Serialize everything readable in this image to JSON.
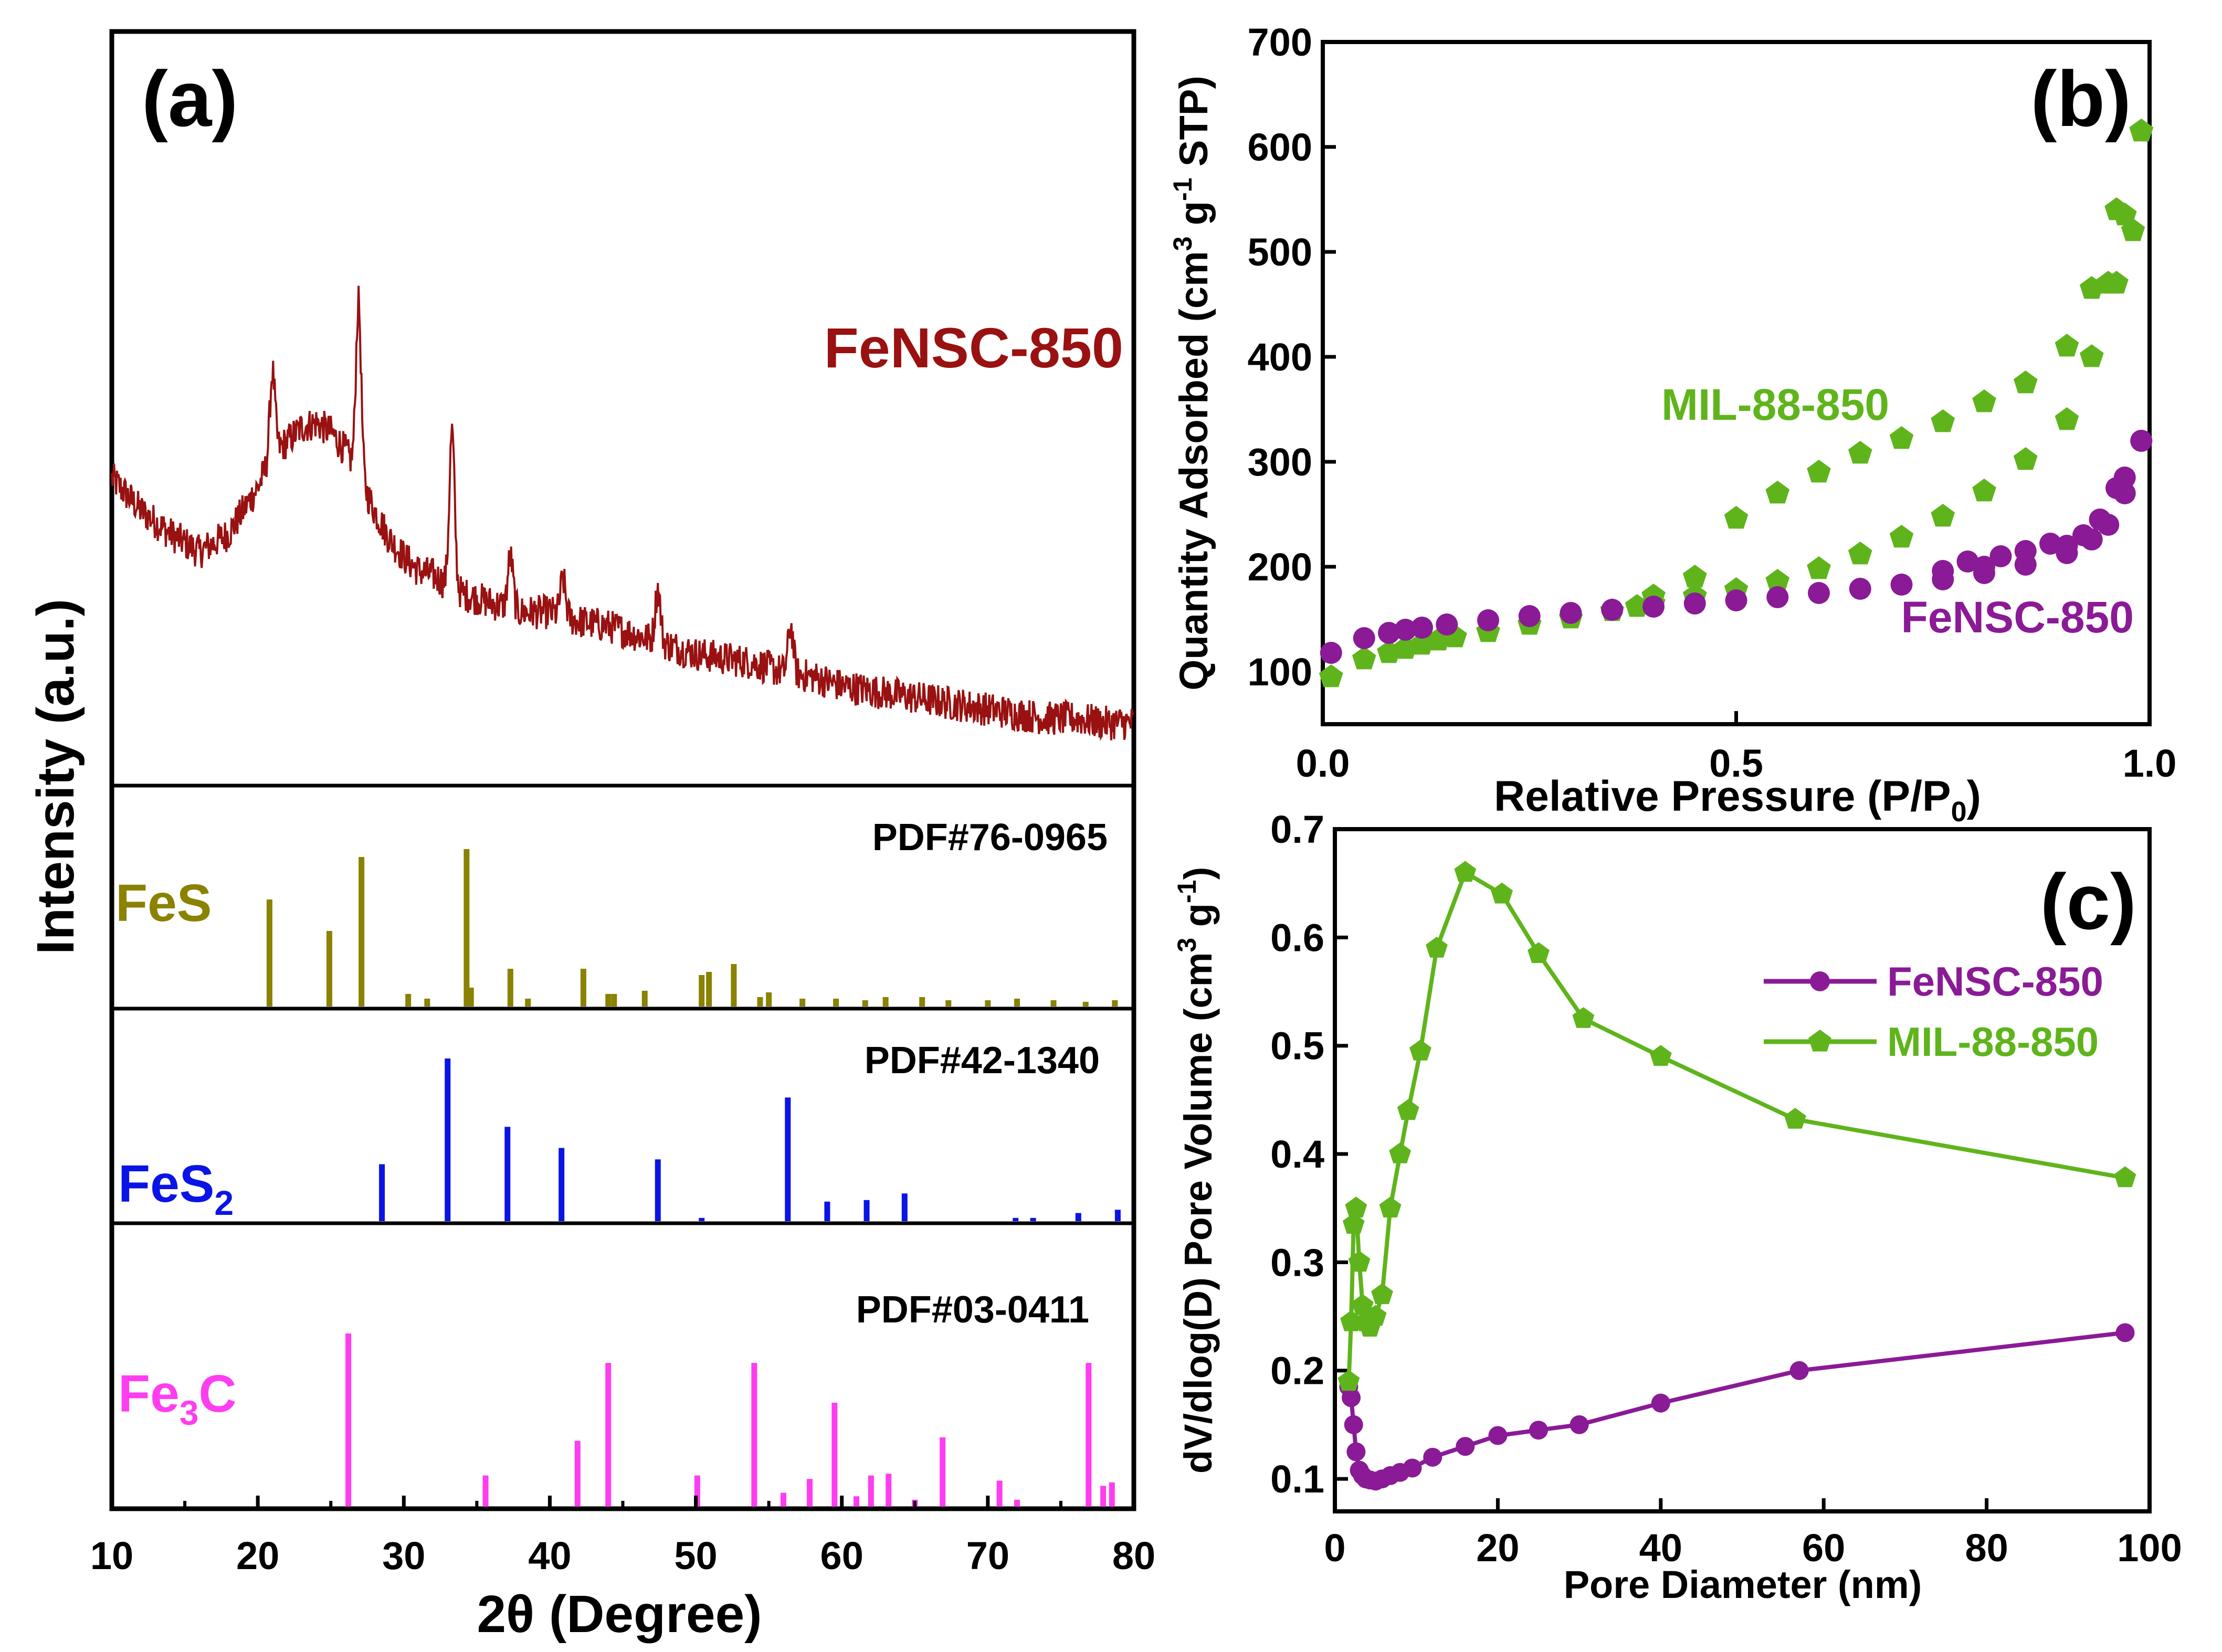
{
  "colors": {
    "fensc_xrd": "#991111",
    "fes": "#8a8200",
    "fes2": "#0a14e6",
    "fe3c": "#ff3df0",
    "fensc": "#8a1a96",
    "mil": "#5fb41c",
    "axis": "#000000"
  },
  "chart_data": [
    {
      "type": "line",
      "panel": "(a)",
      "xlabel": "2θ (Degree)",
      "ylabel": "Intensity (a.u.)",
      "xlim": [
        10,
        80
      ],
      "xticks": [
        "10",
        "20",
        "30",
        "40",
        "50",
        "60",
        "70",
        "80"
      ],
      "series": [
        {
          "name": "FeNSC-850",
          "x": [
            10,
            12,
            14,
            16,
            18,
            20,
            21,
            22,
            23,
            24,
            25,
            26,
            27,
            28,
            29,
            30,
            31,
            32,
            33,
            34,
            35,
            36,
            37,
            38,
            40,
            42,
            44,
            46,
            48,
            50,
            52,
            54,
            56,
            58,
            60,
            62,
            64,
            66,
            68,
            70,
            72,
            74,
            76,
            78,
            80
          ],
          "y": [
            0.62,
            0.55,
            0.5,
            0.46,
            0.5,
            0.6,
            0.67,
            0.7,
            0.73,
            0.74,
            0.72,
            0.68,
            0.62,
            0.55,
            0.49,
            0.45,
            0.42,
            0.41,
            0.39,
            0.37,
            0.36,
            0.35,
            0.34,
            0.33,
            0.33,
            0.31,
            0.3,
            0.28,
            0.26,
            0.24,
            0.23,
            0.22,
            0.2,
            0.19,
            0.17,
            0.16,
            0.15,
            0.14,
            0.13,
            0.12,
            0.11,
            0.1,
            0.1,
            0.09,
            0.09
          ],
          "peaks": [
            {
              "x": 21.0,
              "y": 0.85
            },
            {
              "x": 26.9,
              "y": 1.0
            },
            {
              "x": 33.3,
              "y": 0.72
            },
            {
              "x": 37.3,
              "y": 0.45
            },
            {
              "x": 40.9,
              "y": 0.4
            },
            {
              "x": 47.4,
              "y": 0.38
            },
            {
              "x": 56.5,
              "y": 0.3
            }
          ]
        }
      ],
      "labels": {
        "title": "(a)",
        "series_label": "FeNSC-850"
      }
    },
    {
      "type": "bar",
      "panel": "FeS reference",
      "label": "FeS",
      "card": "PDF#76-0965",
      "positions": [
        20.8,
        24.9,
        27.1,
        30.3,
        31.6,
        34.3,
        34.6,
        37.3,
        38.5,
        42.3,
        44.0,
        44.4,
        46.5,
        50.4,
        50.9,
        52.6,
        54.4,
        55.0,
        57.3,
        59.6,
        61.6,
        63.0,
        65.5,
        67.3,
        70.0,
        72.0,
        74.5,
        76.7,
        78.7
      ],
      "intensities": [
        0.68,
        0.48,
        0.95,
        0.08,
        0.05,
        1.0,
        0.12,
        0.24,
        0.05,
        0.24,
        0.08,
        0.08,
        0.1,
        0.2,
        0.22,
        0.27,
        0.06,
        0.09,
        0.05,
        0.05,
        0.04,
        0.06,
        0.06,
        0.04,
        0.04,
        0.05,
        0.04,
        0.03,
        0.04
      ]
    },
    {
      "type": "bar",
      "panel": "FeS2 reference",
      "label_main": "FeS",
      "label_sub": "2",
      "card": "PDF#42-1340",
      "positions": [
        28.5,
        33.0,
        37.1,
        40.8,
        47.4,
        50.4,
        56.3,
        59.0,
        61.7,
        64.3,
        71.9,
        73.1,
        76.2,
        78.9
      ],
      "intensities": [
        0.35,
        1.0,
        0.58,
        0.45,
        0.38,
        0.02,
        0.76,
        0.12,
        0.13,
        0.17,
        0.02,
        0.02,
        0.05,
        0.07
      ]
    },
    {
      "type": "bar",
      "panel": "Fe3C reference",
      "label_main": "Fe",
      "label_sub": "3",
      "label_end": "C",
      "card": "PDF#03-0411",
      "positions": [
        26.2,
        35.6,
        41.9,
        44.0,
        50.1,
        54.0,
        56.0,
        57.8,
        59.5,
        61.0,
        62.0,
        63.2,
        65.0,
        66.9,
        70.8,
        72.0,
        76.9,
        77.9,
        78.5
      ],
      "intensities": [
        1.0,
        0.18,
        0.38,
        0.83,
        0.18,
        0.83,
        0.08,
        0.16,
        0.6,
        0.06,
        0.18,
        0.19,
        0.04,
        0.4,
        0.15,
        0.04,
        0.83,
        0.12,
        0.14
      ]
    },
    {
      "type": "scatter",
      "panel": "(b)",
      "title": "(b)",
      "xlabel": "Relative Pressure (P/P",
      "xlabel_sub": "0",
      "xlabel_end": ")",
      "ylabel_main": "Quantity Adsorbed (cm",
      "ylabel_sup1": "3",
      "ylabel_mid": " g",
      "ylabel_sup2": "-1",
      "ylabel_end": " STP)",
      "xlim": [
        0,
        1
      ],
      "ylim": [
        50,
        700
      ],
      "xticks": [
        "0.0",
        "0.5",
        "1.0"
      ],
      "yticks": [
        "100",
        "200",
        "300",
        "400",
        "500",
        "600",
        "700"
      ],
      "series": [
        {
          "name": "MIL-88-850",
          "label": "MIL-88-850",
          "adsorption": {
            "x": [
              0.01,
              0.05,
              0.08,
              0.1,
              0.12,
              0.14,
              0.16,
              0.2,
              0.25,
              0.3,
              0.35,
              0.38,
              0.4,
              0.45,
              0.5,
              0.55,
              0.6,
              0.65,
              0.7,
              0.75,
              0.8,
              0.85,
              0.9,
              0.93,
              0.96,
              0.98,
              0.99
            ],
            "y": [
              95,
              112,
              118,
              122,
              126,
              130,
              133,
              138,
              145,
              151,
              158,
              162,
              165,
              172,
              178,
              186,
              198,
              212,
              228,
              248,
              272,
              302,
              340,
              400,
              470,
              520,
              615
            ]
          },
          "desorption": {
            "x": [
              0.99,
              0.97,
              0.96,
              0.95,
              0.93,
              0.9,
              0.85,
              0.8,
              0.75,
              0.7,
              0.65,
              0.6,
              0.55,
              0.5,
              0.45,
              0.4
            ],
            "y": [
              615,
              535,
              540,
              470,
              465,
              410,
              375,
              357,
              338,
              322,
              308,
              290,
              270,
              246,
              190,
              172
            ]
          }
        },
        {
          "name": "FeNSC-850",
          "label": "FeNSC-850",
          "adsorption": {
            "x": [
              0.01,
              0.05,
              0.08,
              0.1,
              0.12,
              0.15,
              0.2,
              0.25,
              0.3,
              0.35,
              0.4,
              0.45,
              0.5,
              0.55,
              0.6,
              0.65,
              0.7,
              0.75,
              0.8,
              0.85,
              0.9,
              0.93,
              0.95,
              0.97,
              0.99
            ],
            "y": [
              118,
              132,
              137,
              140,
              142,
              145,
              149,
              153,
              156,
              159,
              162,
              165,
              168,
              171,
              175,
              179,
              183,
              188,
              194,
              202,
              213,
              226,
              240,
              270,
              320
            ]
          },
          "desorption": {
            "x": [
              0.99,
              0.97,
              0.96,
              0.94,
              0.92,
              0.9,
              0.88,
              0.85,
              0.82,
              0.8,
              0.78,
              0.75
            ],
            "y": [
              320,
              285,
              275,
              245,
              230,
              220,
              222,
              215,
              210,
              200,
              205,
              196
            ]
          }
        }
      ]
    },
    {
      "type": "line",
      "panel": "(c)",
      "title": "(c)",
      "xlabel": "Pore Diameter (nm)",
      "ylabel_main": "dV/dlog(D) Pore Volume (cm",
      "ylabel_sup1": "3",
      "ylabel_mid": " g",
      "ylabel_sup2": "-1",
      "ylabel_end": ")",
      "xlim": [
        0,
        100
      ],
      "ylim": [
        0.07,
        0.7
      ],
      "xticks": [
        "0",
        "20",
        "40",
        "60",
        "80",
        "100"
      ],
      "yticks": [
        "0.1",
        "0.2",
        "0.3",
        "0.4",
        "0.5",
        "0.6",
        "0.7"
      ],
      "series": [
        {
          "name": "FeNSC-850",
          "x": [
            1.7,
            2.0,
            2.3,
            2.6,
            3.0,
            3.4,
            3.8,
            4.3,
            5.0,
            5.8,
            6.8,
            8.0,
            9.5,
            12,
            16,
            20,
            25,
            30,
            40,
            57,
            97
          ],
          "y": [
            0.185,
            0.175,
            0.15,
            0.125,
            0.108,
            0.103,
            0.1,
            0.099,
            0.098,
            0.1,
            0.103,
            0.106,
            0.11,
            0.12,
            0.13,
            0.14,
            0.145,
            0.15,
            0.17,
            0.2,
            0.235
          ]
        },
        {
          "name": "MIL-88-850",
          "x": [
            1.7,
            2.0,
            2.3,
            2.6,
            3.0,
            3.4,
            3.8,
            4.3,
            5.0,
            5.8,
            6.8,
            8.0,
            9.0,
            10.5,
            12.5,
            16,
            20.5,
            25,
            30.5,
            40,
            56.5,
            97
          ],
          "y": [
            0.19,
            0.245,
            0.335,
            0.35,
            0.3,
            0.26,
            0.245,
            0.24,
            0.25,
            0.27,
            0.35,
            0.4,
            0.44,
            0.495,
            0.59,
            0.66,
            0.64,
            0.585,
            0.525,
            0.49,
            0.432,
            0.378
          ]
        }
      ],
      "legend": [
        "FeNSC-850",
        "MIL-88-850"
      ]
    }
  ]
}
